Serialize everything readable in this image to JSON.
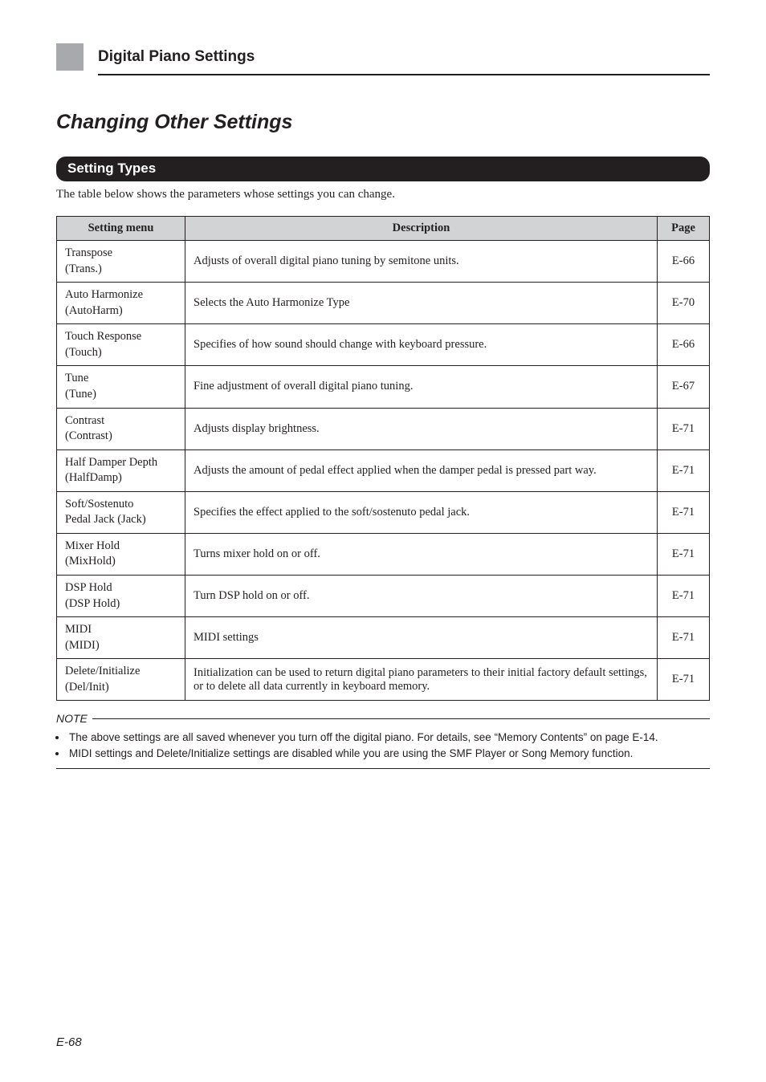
{
  "header": {
    "section_title": "Digital Piano Settings"
  },
  "main": {
    "heading": "Changing Other Settings",
    "pill": "Setting Types",
    "intro": "The table below shows the parameters whose settings you can change."
  },
  "table": {
    "headers": {
      "menu": "Setting menu",
      "desc": "Description",
      "page": "Page"
    },
    "rows": [
      {
        "menu_line1": "Transpose",
        "menu_line2": "(Trans.)",
        "desc": "Adjusts of overall digital piano tuning by semitone units.",
        "page": "E-66"
      },
      {
        "menu_line1": "Auto Harmonize",
        "menu_line2": "(AutoHarm)",
        "desc": "Selects the Auto Harmonize Type",
        "page": "E-70"
      },
      {
        "menu_line1": "Touch Response",
        "menu_line2": "(Touch)",
        "desc": "Specifies of how sound should change with keyboard pressure.",
        "page": "E-66"
      },
      {
        "menu_line1": "Tune",
        "menu_line2": "(Tune)",
        "desc": "Fine adjustment of overall digital piano tuning.",
        "page": "E-67"
      },
      {
        "menu_line1": "Contrast",
        "menu_line2": "(Contrast)",
        "desc": "Adjusts display brightness.",
        "page": "E-71"
      },
      {
        "menu_line1": "Half Damper Depth",
        "menu_line2": "(HalfDamp)",
        "desc": "Adjusts the amount of pedal effect applied when the damper pedal is pressed part way.",
        "page": "E-71"
      },
      {
        "menu_line1": "Soft/Sostenuto",
        "menu_line2": "Pedal Jack (Jack)",
        "desc": "Specifies the effect applied to the soft/sostenuto pedal jack.",
        "page": "E-71"
      },
      {
        "menu_line1": "Mixer Hold",
        "menu_line2": "(MixHold)",
        "desc": "Turns mixer hold on or off.",
        "page": "E-71"
      },
      {
        "menu_line1": "DSP Hold",
        "menu_line2": "(DSP Hold)",
        "desc": "Turn DSP hold on or off.",
        "page": "E-71"
      },
      {
        "menu_line1": "MIDI",
        "menu_line2": "(MIDI)",
        "desc": "MIDI settings",
        "page": "E-71"
      },
      {
        "menu_line1": "Delete/Initialize",
        "menu_line2": "(Del/Init)",
        "desc": "Initialization can be used to return digital piano parameters to their initial factory default settings, or to delete all data currently in keyboard memory.",
        "page": "E-71"
      }
    ]
  },
  "note": {
    "label": "NOTE",
    "items": [
      "The above settings are all saved whenever you turn off the digital piano. For details, see “Memory Contents” on page E-14.",
      "MIDI settings and Delete/Initialize settings are disabled while you are using the SMF Player or Song Memory function."
    ]
  },
  "footer": {
    "page_number": "E-68"
  }
}
